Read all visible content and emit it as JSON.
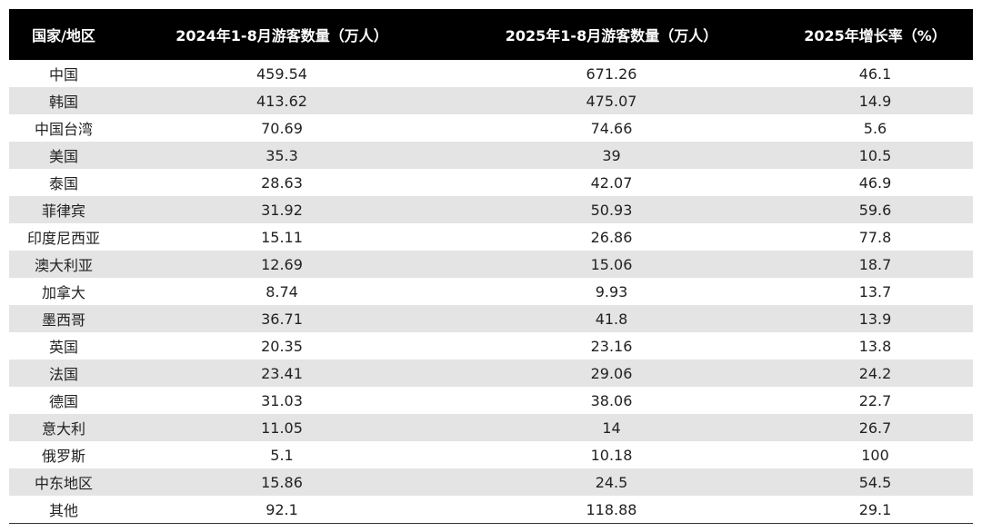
{
  "table": {
    "headers": [
      "国家/地区",
      "2024年1-8月游客数量（万人）",
      "2025年1-8月游客数量（万人）",
      "2025年增长率（%）"
    ],
    "rows": [
      [
        "中国",
        "459.54",
        "671.26",
        "46.1"
      ],
      [
        "韩国",
        "413.62",
        "475.07",
        "14.9"
      ],
      [
        "中国台湾",
        "70.69",
        "74.66",
        "5.6"
      ],
      [
        "美国",
        "35.3",
        "39",
        "10.5"
      ],
      [
        "泰国",
        "28.63",
        "42.07",
        "46.9"
      ],
      [
        "菲律宾",
        "31.92",
        "50.93",
        "59.6"
      ],
      [
        "印度尼西亚",
        "15.11",
        "26.86",
        "77.8"
      ],
      [
        "澳大利亚",
        "12.69",
        "15.06",
        "18.7"
      ],
      [
        "加拿大",
        "8.74",
        "9.93",
        "13.7"
      ],
      [
        "墨西哥",
        "36.71",
        "41.8",
        "13.9"
      ],
      [
        "英国",
        "20.35",
        "23.16",
        "13.8"
      ],
      [
        "法国",
        "23.41",
        "29.06",
        "24.2"
      ],
      [
        "德国",
        "31.03",
        "38.06",
        "22.7"
      ],
      [
        "意大利",
        "11.05",
        "14",
        "26.7"
      ],
      [
        "俄罗斯",
        "5.1",
        "10.18",
        "100"
      ],
      [
        "中东地区",
        "15.86",
        "24.5",
        "54.5"
      ],
      [
        "其他",
        "92.1",
        "118.88",
        "29.1"
      ]
    ]
  }
}
